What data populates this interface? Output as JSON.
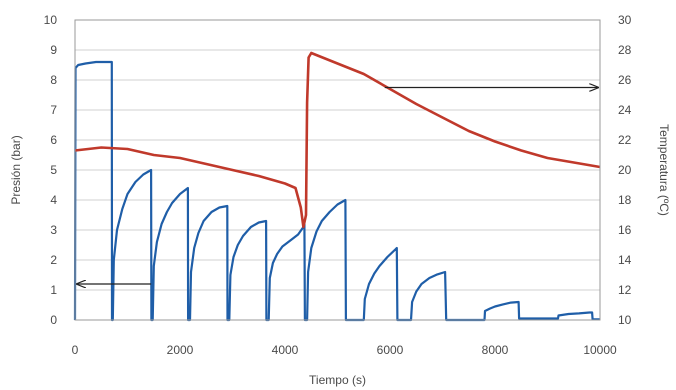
{
  "chart_data": {
    "type": "line",
    "title": "",
    "xlabel": "Tiempo (s)",
    "ylabel": "Presión (bar)",
    "y2label": "Temperatura (ºC)",
    "xlim": [
      0,
      10000
    ],
    "ylim": [
      0,
      10
    ],
    "y2lim": [
      10,
      30
    ],
    "xticks": [
      0,
      2000,
      4000,
      6000,
      8000,
      10000
    ],
    "yticks": [
      0,
      1,
      2,
      3,
      4,
      5,
      6,
      7,
      8,
      9,
      10
    ],
    "y2ticks": [
      10,
      12,
      14,
      16,
      18,
      20,
      22,
      24,
      26,
      28,
      30
    ],
    "grid": "horizontal",
    "legend": "none",
    "series": [
      {
        "axis": "left",
        "color": "#1f5ea8",
        "points": [
          [
            0,
            0
          ],
          [
            10,
            8.4
          ],
          [
            60,
            8.5
          ],
          [
            200,
            8.55
          ],
          [
            400,
            8.6
          ],
          [
            600,
            8.6
          ],
          [
            700,
            8.6
          ],
          [
            705,
            0
          ],
          [
            720,
            0
          ],
          [
            740,
            2.0
          ],
          [
            800,
            3.0
          ],
          [
            900,
            3.7
          ],
          [
            1000,
            4.2
          ],
          [
            1150,
            4.6
          ],
          [
            1300,
            4.85
          ],
          [
            1450,
            5.0
          ],
          [
            1455,
            0
          ],
          [
            1480,
            0
          ],
          [
            1500,
            1.8
          ],
          [
            1560,
            2.6
          ],
          [
            1650,
            3.2
          ],
          [
            1750,
            3.6
          ],
          [
            1850,
            3.9
          ],
          [
            2000,
            4.2
          ],
          [
            2150,
            4.4
          ],
          [
            2155,
            0
          ],
          [
            2190,
            0
          ],
          [
            2210,
            1.6
          ],
          [
            2270,
            2.4
          ],
          [
            2350,
            2.9
          ],
          [
            2450,
            3.3
          ],
          [
            2600,
            3.6
          ],
          [
            2750,
            3.75
          ],
          [
            2900,
            3.8
          ],
          [
            2905,
            0
          ],
          [
            2940,
            0
          ],
          [
            2960,
            1.5
          ],
          [
            3020,
            2.1
          ],
          [
            3100,
            2.5
          ],
          [
            3200,
            2.8
          ],
          [
            3350,
            3.1
          ],
          [
            3500,
            3.25
          ],
          [
            3640,
            3.3
          ],
          [
            3645,
            0
          ],
          [
            3690,
            0
          ],
          [
            3710,
            1.4
          ],
          [
            3770,
            1.9
          ],
          [
            3850,
            2.2
          ],
          [
            3950,
            2.45
          ],
          [
            4100,
            2.65
          ],
          [
            4250,
            2.85
          ],
          [
            4350,
            3.1
          ],
          [
            4370,
            3.3
          ],
          [
            4380,
            0
          ],
          [
            4420,
            0
          ],
          [
            4440,
            1.6
          ],
          [
            4500,
            2.4
          ],
          [
            4600,
            2.95
          ],
          [
            4700,
            3.3
          ],
          [
            4850,
            3.6
          ],
          [
            5000,
            3.85
          ],
          [
            5150,
            4.0
          ],
          [
            5160,
            0
          ],
          [
            5500,
            0
          ],
          [
            5520,
            0.7
          ],
          [
            5600,
            1.2
          ],
          [
            5700,
            1.55
          ],
          [
            5800,
            1.8
          ],
          [
            5950,
            2.1
          ],
          [
            6100,
            2.35
          ],
          [
            6130,
            2.4
          ],
          [
            6140,
            0
          ],
          [
            6400,
            0
          ],
          [
            6420,
            0.6
          ],
          [
            6500,
            0.95
          ],
          [
            6600,
            1.2
          ],
          [
            6750,
            1.4
          ],
          [
            6900,
            1.52
          ],
          [
            7050,
            1.6
          ],
          [
            7070,
            0
          ],
          [
            7800,
            0
          ],
          [
            7810,
            0.3
          ],
          [
            7900,
            0.38
          ],
          [
            8000,
            0.45
          ],
          [
            8150,
            0.52
          ],
          [
            8300,
            0.58
          ],
          [
            8450,
            0.6
          ],
          [
            8460,
            0.05
          ],
          [
            9200,
            0.05
          ],
          [
            9210,
            0.15
          ],
          [
            9400,
            0.2
          ],
          [
            9600,
            0.22
          ],
          [
            9800,
            0.25
          ],
          [
            9850,
            0.25
          ],
          [
            9860,
            0.02
          ],
          [
            10000,
            0.02
          ]
        ]
      },
      {
        "axis": "right",
        "color": "#c0392b",
        "points": [
          [
            0,
            21.3
          ],
          [
            500,
            21.5
          ],
          [
            1000,
            21.4
          ],
          [
            1500,
            21.0
          ],
          [
            2000,
            20.8
          ],
          [
            2500,
            20.4
          ],
          [
            3000,
            20.0
          ],
          [
            3500,
            19.6
          ],
          [
            4000,
            19.1
          ],
          [
            4200,
            18.8
          ],
          [
            4300,
            17.5
          ],
          [
            4350,
            16.2
          ],
          [
            4400,
            17.0
          ],
          [
            4420,
            24.5
          ],
          [
            4450,
            27.5
          ],
          [
            4500,
            27.8
          ],
          [
            5000,
            27.1
          ],
          [
            5500,
            26.4
          ],
          [
            6000,
            25.4
          ],
          [
            6500,
            24.4
          ],
          [
            7000,
            23.5
          ],
          [
            7500,
            22.6
          ],
          [
            8000,
            21.9
          ],
          [
            8500,
            21.3
          ],
          [
            9000,
            20.8
          ],
          [
            9500,
            20.5
          ],
          [
            10000,
            20.2
          ]
        ]
      }
    ],
    "annotations": [
      {
        "type": "arrow",
        "direction": "left",
        "from": [
          1450,
          1.2
        ],
        "to": [
          0,
          1.2
        ]
      },
      {
        "type": "arrow",
        "direction": "right",
        "from": [
          5900,
          25.5
        ],
        "to": [
          10000,
          25.5
        ]
      }
    ]
  }
}
